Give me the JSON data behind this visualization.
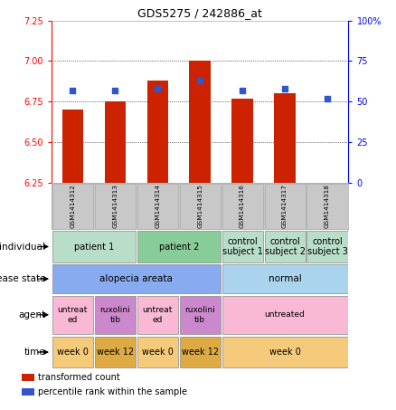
{
  "title": "GDS5275 / 242886_at",
  "samples": [
    "GSM1414312",
    "GSM1414313",
    "GSM1414314",
    "GSM1414315",
    "GSM1414316",
    "GSM1414317",
    "GSM1414318"
  ],
  "bar_values": [
    6.7,
    6.75,
    6.88,
    7.0,
    6.77,
    6.8,
    6.25
  ],
  "dot_values": [
    57,
    57,
    58,
    63,
    57,
    58,
    52
  ],
  "ylim_left": [
    6.25,
    7.25
  ],
  "ylim_right": [
    0,
    100
  ],
  "yticks_left": [
    6.25,
    6.5,
    6.75,
    7.0,
    7.25
  ],
  "yticks_right": [
    0,
    25,
    50,
    75,
    100
  ],
  "ytick_labels_right": [
    "0",
    "25",
    "50",
    "75",
    "100%"
  ],
  "bar_color": "#cc2200",
  "dot_color": "#3355cc",
  "bar_width": 0.5,
  "row_labels": [
    "individual",
    "disease state",
    "agent",
    "time"
  ],
  "individual_groups": [
    {
      "label": "patient 1",
      "cols": [
        0,
        1
      ],
      "color": "#b8ddc8"
    },
    {
      "label": "patient 2",
      "cols": [
        2,
        3
      ],
      "color": "#88cc99"
    },
    {
      "label": "control\nsubject 1",
      "cols": [
        4
      ],
      "color": "#b8ddc8"
    },
    {
      "label": "control\nsubject 2",
      "cols": [
        5
      ],
      "color": "#b8ddc8"
    },
    {
      "label": "control\nsubject 3",
      "cols": [
        6
      ],
      "color": "#b8ddc8"
    }
  ],
  "disease_groups": [
    {
      "label": "alopecia areata",
      "cols": [
        0,
        1,
        2,
        3
      ],
      "color": "#88aaee"
    },
    {
      "label": "normal",
      "cols": [
        4,
        5,
        6
      ],
      "color": "#aad4ee"
    }
  ],
  "agent_groups": [
    {
      "label": "untreat\ned",
      "cols": [
        0
      ],
      "color": "#f9b8d4"
    },
    {
      "label": "ruxolini\ntib",
      "cols": [
        1
      ],
      "color": "#cc88cc"
    },
    {
      "label": "untreat\ned",
      "cols": [
        2
      ],
      "color": "#f9b8d4"
    },
    {
      "label": "ruxolini\ntib",
      "cols": [
        3
      ],
      "color": "#cc88cc"
    },
    {
      "label": "untreated",
      "cols": [
        4,
        5,
        6
      ],
      "color": "#f9b8d4"
    }
  ],
  "time_groups": [
    {
      "label": "week 0",
      "cols": [
        0
      ],
      "color": "#f5ca7a"
    },
    {
      "label": "week 12",
      "cols": [
        1
      ],
      "color": "#ddaa44"
    },
    {
      "label": "week 0",
      "cols": [
        2
      ],
      "color": "#f5ca7a"
    },
    {
      "label": "week 12",
      "cols": [
        3
      ],
      "color": "#ddaa44"
    },
    {
      "label": "week 0",
      "cols": [
        4,
        5,
        6
      ],
      "color": "#f5ca7a"
    }
  ],
  "legend_items": [
    {
      "label": "transformed count",
      "color": "#cc2200"
    },
    {
      "label": "percentile rank within the sample",
      "color": "#3355cc"
    }
  ],
  "background_color": "#ffffff",
  "sample_bg_color": "#c8c8c8",
  "grid_dotline_color": "#000000",
  "hgrid_ticks": [
    6.5,
    6.75,
    7.0
  ]
}
